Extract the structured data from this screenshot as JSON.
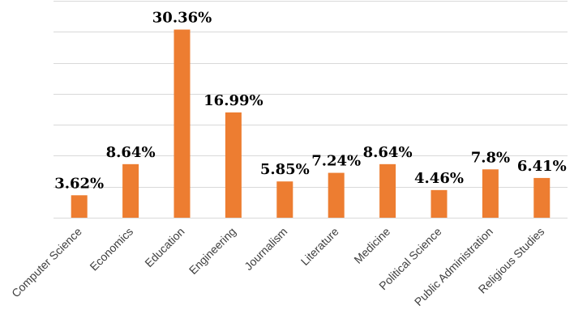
{
  "chart_data": {
    "type": "bar",
    "categories": [
      "Computer Science",
      "Economics",
      "Education",
      "Engineering",
      "Journalism",
      "Literature",
      "Medicine",
      "Political Science",
      "Public Administration",
      "Religious Studies"
    ],
    "values": [
      3.62,
      8.64,
      30.36,
      16.99,
      5.85,
      7.24,
      8.64,
      4.46,
      7.8,
      6.41
    ],
    "data_labels": [
      "3.62%",
      "8.64%",
      "30.36%",
      "16.99%",
      "5.85%",
      "7.24%",
      "8.64%",
      "4.46%",
      "7.8%",
      "6.41%"
    ],
    "title": "",
    "xlabel": "",
    "ylabel": "",
    "ylim": [
      0,
      35
    ],
    "gridlines": true,
    "bar_color": "#ed7d31",
    "legend": "none"
  }
}
